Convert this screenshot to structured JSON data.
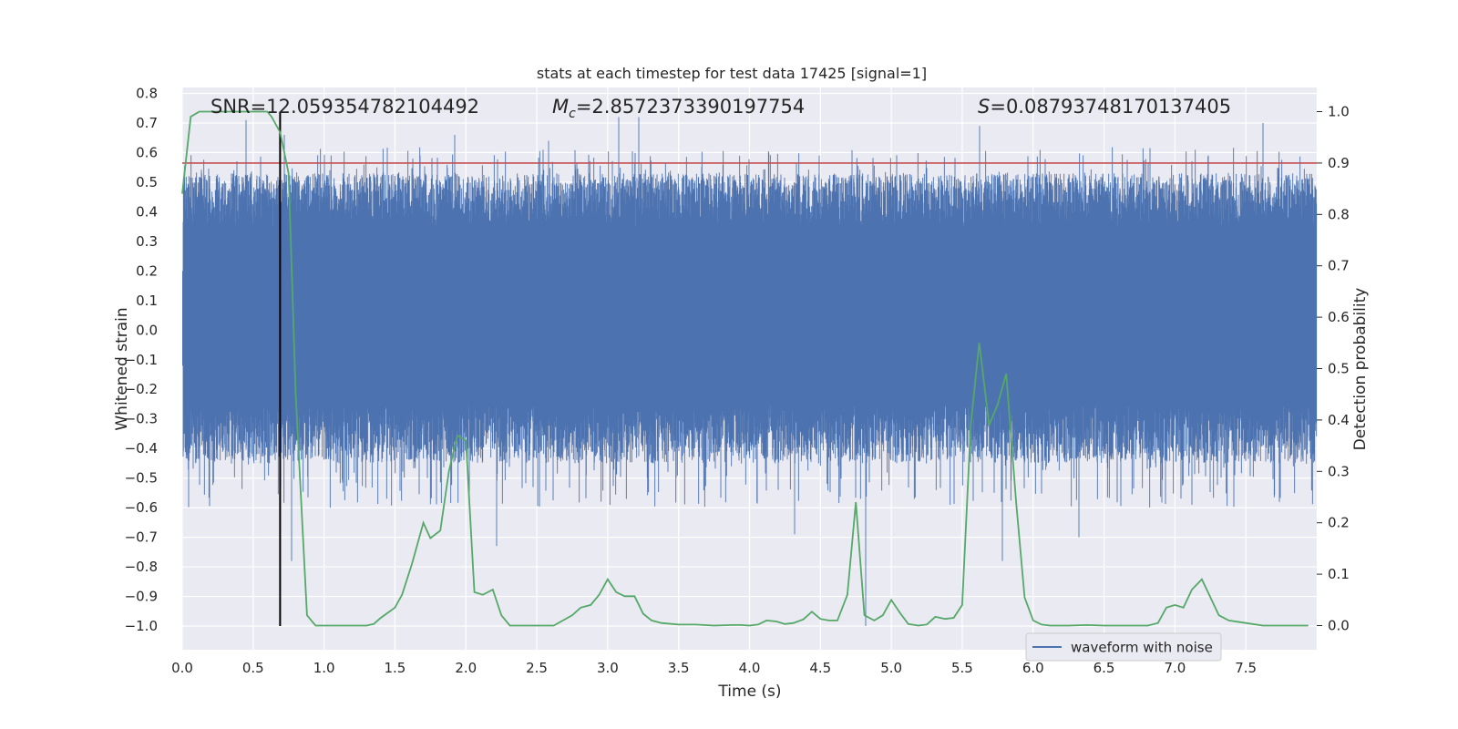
{
  "chart_data": {
    "type": "line",
    "title": "stats at each timestep for test data 17425 [signal=1]",
    "xlabel": "Time (s)",
    "ylabel_left": "Whitened strain",
    "ylabel_right": "Detection probability",
    "xlim": [
      0.0,
      8.0
    ],
    "ylim_left": [
      -1.08,
      0.82
    ],
    "ylim_right": [
      -0.047,
      1.047
    ],
    "x_ticks": [
      "0.0",
      "0.5",
      "1.0",
      "1.5",
      "2.0",
      "2.5",
      "3.0",
      "3.5",
      "4.0",
      "4.5",
      "5.0",
      "5.5",
      "6.0",
      "6.5",
      "7.0",
      "7.5"
    ],
    "y_ticks_left": [
      "0.8",
      "0.7",
      "0.6",
      "0.5",
      "0.4",
      "0.3",
      "0.2",
      "0.1",
      "0.0",
      "−0.1",
      "−0.2",
      "−0.3",
      "−0.4",
      "−0.5",
      "−0.6",
      "−0.7",
      "−0.8",
      "−0.9",
      "−1.0"
    ],
    "y_ticks_right": [
      "0.0",
      "0.1",
      "0.2",
      "0.3",
      "0.4",
      "0.5",
      "0.6",
      "0.7",
      "0.8",
      "0.9",
      "1.0"
    ],
    "grid": true,
    "legend": {
      "placement": "bottom-right",
      "entries": [
        "waveform with noise"
      ]
    },
    "annotations": {
      "snr": "SNR=12.059354782104492",
      "mc_symbol": "M",
      "mc_sub": "c",
      "mc_value": "=2.8572373390197754",
      "s_symbol": "S",
      "s_value": "=0.08793748170137405"
    },
    "threshold_right": 0.9,
    "marker_time": 0.69,
    "colors": {
      "waveform": "#4c72b0",
      "probability": "#55a868",
      "threshold": "#c44e52",
      "marker": "#000000",
      "background": "#eaeaf2"
    },
    "series": [
      {
        "name": "waveform with noise",
        "axis": "left",
        "style": "dense-oscillation",
        "x_range": [
          0.0,
          8.0
        ],
        "core_amplitude": [
          -0.25,
          0.35
        ],
        "peaks": [
          {
            "x": 0.45,
            "y": 0.71
          },
          {
            "x": 0.72,
            "y": 0.66
          },
          {
            "x": 0.77,
            "y": -0.78
          },
          {
            "x": 1.92,
            "y": 0.66
          },
          {
            "x": 2.22,
            "y": -0.73
          },
          {
            "x": 2.58,
            "y": 0.64
          },
          {
            "x": 3.08,
            "y": 0.72
          },
          {
            "x": 3.22,
            "y": 0.72
          },
          {
            "x": 4.32,
            "y": -0.69
          },
          {
            "x": 4.82,
            "y": -1.0
          },
          {
            "x": 5.62,
            "y": 0.69
          },
          {
            "x": 5.78,
            "y": -0.78
          },
          {
            "x": 6.32,
            "y": -0.7
          },
          {
            "x": 7.12,
            "y": -0.59
          },
          {
            "x": 7.62,
            "y": 0.7
          }
        ]
      },
      {
        "name": "",
        "axis": "right",
        "x": [
          0.0,
          0.06,
          0.12,
          0.25,
          0.4,
          0.5,
          0.6,
          0.63,
          0.69,
          0.75,
          0.8,
          0.88,
          0.94,
          1.0,
          1.1,
          1.2,
          1.3,
          1.35,
          1.4,
          1.45,
          1.5,
          1.55,
          1.62,
          1.7,
          1.75,
          1.82,
          1.88,
          1.94,
          2.0,
          2.06,
          2.12,
          2.19,
          2.25,
          2.31,
          2.38,
          2.5,
          2.62,
          2.75,
          2.81,
          2.88,
          2.94,
          3.0,
          3.06,
          3.12,
          3.19,
          3.25,
          3.31,
          3.38,
          3.5,
          3.62,
          3.75,
          3.88,
          3.94,
          4.0,
          4.06,
          4.12,
          4.19,
          4.25,
          4.31,
          4.38,
          4.44,
          4.5,
          4.56,
          4.62,
          4.69,
          4.75,
          4.81,
          4.88,
          4.94,
          5.0,
          5.06,
          5.12,
          5.19,
          5.25,
          5.31,
          5.38,
          5.44,
          5.5,
          5.56,
          5.62,
          5.69,
          5.75,
          5.81,
          5.88,
          5.94,
          6.0,
          6.06,
          6.12,
          6.25,
          6.38,
          6.5,
          6.62,
          6.75,
          6.81,
          6.88,
          6.94,
          7.0,
          7.06,
          7.12,
          7.19,
          7.25,
          7.31,
          7.38,
          7.5,
          7.62,
          7.75,
          7.88,
          7.94
        ],
        "values": [
          0.84,
          0.99,
          1.0,
          1.0,
          1.0,
          1.0,
          1.0,
          0.99,
          0.96,
          0.88,
          0.45,
          0.02,
          0.0,
          0.0,
          0.0,
          0.0,
          0.0,
          0.003,
          0.015,
          0.025,
          0.035,
          0.06,
          0.12,
          0.2,
          0.17,
          0.185,
          0.3,
          0.37,
          0.36,
          0.065,
          0.06,
          0.07,
          0.02,
          0.0,
          0.0,
          0.0,
          0.0,
          0.02,
          0.035,
          0.04,
          0.06,
          0.09,
          0.065,
          0.057,
          0.057,
          0.023,
          0.01,
          0.005,
          0.002,
          0.002,
          0.0,
          0.001,
          0.001,
          0.0,
          0.002,
          0.01,
          0.008,
          0.003,
          0.005,
          0.012,
          0.027,
          0.013,
          0.01,
          0.01,
          0.06,
          0.24,
          0.02,
          0.01,
          0.02,
          0.05,
          0.025,
          0.003,
          0.0,
          0.002,
          0.017,
          0.013,
          0.015,
          0.04,
          0.39,
          0.55,
          0.39,
          0.43,
          0.49,
          0.24,
          0.055,
          0.01,
          0.002,
          0.0,
          0.0,
          0.001,
          0.0,
          0.0,
          0.0,
          0.0,
          0.005,
          0.035,
          0.04,
          0.035,
          0.07,
          0.09,
          0.055,
          0.02,
          0.01,
          0.005,
          0.0,
          0.0,
          0.0,
          0.0
        ]
      }
    ]
  }
}
